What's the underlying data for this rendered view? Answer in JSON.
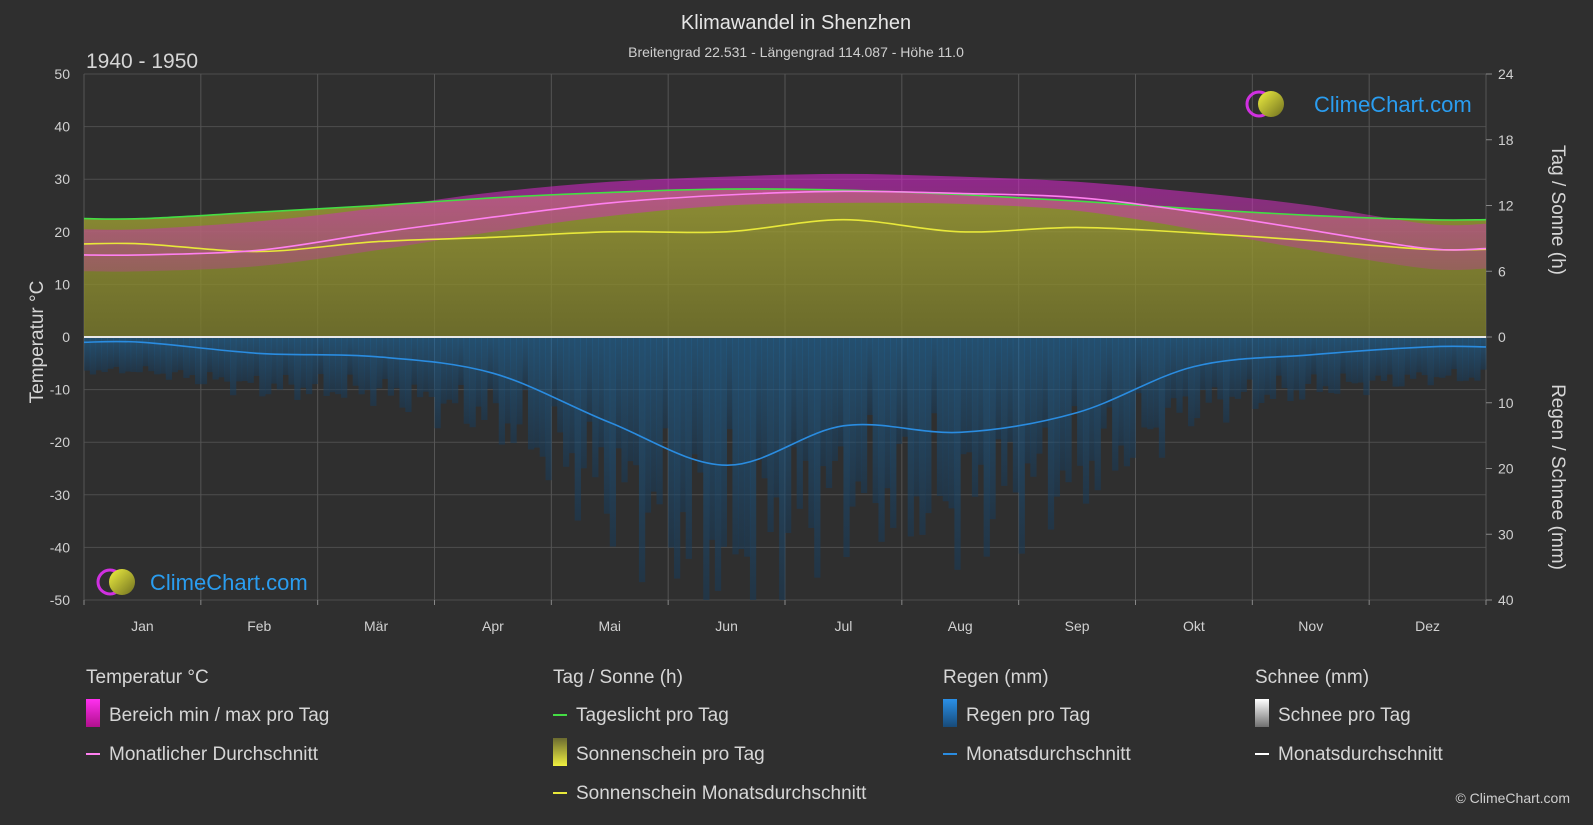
{
  "header": {
    "title": "Klimawandel in Shenzhen",
    "subtitle": "Breitengrad 22.531 - Längengrad 114.087 - Höhe 11.0",
    "period": "1940 - 1950"
  },
  "brand": {
    "logo_text": "ClimeChart.com",
    "copyright": "© ClimeChart.com"
  },
  "colors": {
    "background": "#2f2f2f",
    "temp_range": "#d020c8",
    "temp_avg": "#ff80f0",
    "daylight": "#44dd44",
    "sunshine_fill": "#9c9c2c",
    "sunshine_avg": "#e8e83a",
    "rain_fill": "#1e6ea8",
    "rain_avg": "#2a8ce0",
    "snow_avg": "#ffffff",
    "brand_blue": "#2a9df0"
  },
  "chart_data": {
    "type": "area",
    "x_categories": [
      "Jan",
      "Feb",
      "Mär",
      "Apr",
      "Mai",
      "Jun",
      "Jul",
      "Aug",
      "Sep",
      "Okt",
      "Nov",
      "Dez"
    ],
    "axes": {
      "left": {
        "label": "Temperatur °C",
        "range": [
          -50,
          50
        ],
        "ticks": [
          50,
          40,
          30,
          20,
          10,
          0,
          -10,
          -20,
          -30,
          -40,
          -50
        ]
      },
      "right_top": {
        "label": "Tag / Sonne (h)",
        "range": [
          0,
          24
        ],
        "ticks": [
          24,
          18,
          12,
          6,
          0
        ]
      },
      "right_bottom": {
        "label": "Regen / Schnee (mm)",
        "range": [
          0,
          40
        ],
        "ticks": [
          0,
          10,
          20,
          30,
          40
        ]
      }
    },
    "grid": true,
    "series": [
      {
        "name": "Monatlicher Durchschnitt",
        "unit": "°C",
        "values": [
          15.6,
          16.5,
          19.8,
          22.8,
          25.5,
          27.0,
          27.7,
          27.3,
          26.5,
          23.8,
          20.3,
          16.8
        ]
      },
      {
        "name": "Tageslicht pro Tag",
        "unit": "h",
        "values": [
          10.8,
          11.4,
          12.0,
          12.7,
          13.2,
          13.5,
          13.4,
          13.0,
          12.4,
          11.7,
          11.1,
          10.7
        ]
      },
      {
        "name": "Sonnenschein Monatsdurchschnitt",
        "unit": "h",
        "values": [
          8.5,
          7.8,
          8.7,
          9.1,
          9.6,
          9.6,
          10.7,
          9.6,
          10.0,
          9.5,
          8.8,
          8.0
        ]
      },
      {
        "name": "Regen Monatsdurchschnitt",
        "unit": "mm",
        "values": [
          0.8,
          2.5,
          3.0,
          5.5,
          13.0,
          19.5,
          13.5,
          14.5,
          11.5,
          4.5,
          2.7,
          1.5
        ]
      },
      {
        "name": "Bereich min / max pro Tag",
        "unit": "°C",
        "min": [
          12.5,
          13.5,
          16.5,
          20.0,
          23.0,
          25.0,
          25.5,
          25.3,
          24.0,
          20.5,
          16.5,
          13.0
        ],
        "max": [
          20.5,
          22.0,
          24.5,
          27.5,
          29.5,
          30.5,
          31.0,
          30.5,
          29.5,
          27.5,
          25.0,
          21.5
        ]
      }
    ]
  },
  "legend": {
    "groups": [
      {
        "title": "Temperatur °C",
        "items": [
          {
            "label": "Bereich min / max pro Tag",
            "icon": "range-swatch"
          },
          {
            "label": "Monatlicher Durchschnitt",
            "icon": "line"
          }
        ]
      },
      {
        "title": "Tag / Sonne (h)",
        "items": [
          {
            "label": "Tageslicht pro Tag",
            "icon": "line"
          },
          {
            "label": "Sonnenschein pro Tag",
            "icon": "sunshine-swatch"
          },
          {
            "label": "Sonnenschein Monatsdurchschnitt",
            "icon": "line"
          }
        ]
      },
      {
        "title": "Regen (mm)",
        "items": [
          {
            "label": "Regen pro Tag",
            "icon": "rain-swatch"
          },
          {
            "label": "Monatsdurchschnitt",
            "icon": "line"
          }
        ]
      },
      {
        "title": "Schnee (mm)",
        "items": [
          {
            "label": "Schnee pro Tag",
            "icon": "snow-swatch"
          },
          {
            "label": "Monatsdurchschnitt",
            "icon": "line"
          }
        ]
      }
    ]
  }
}
